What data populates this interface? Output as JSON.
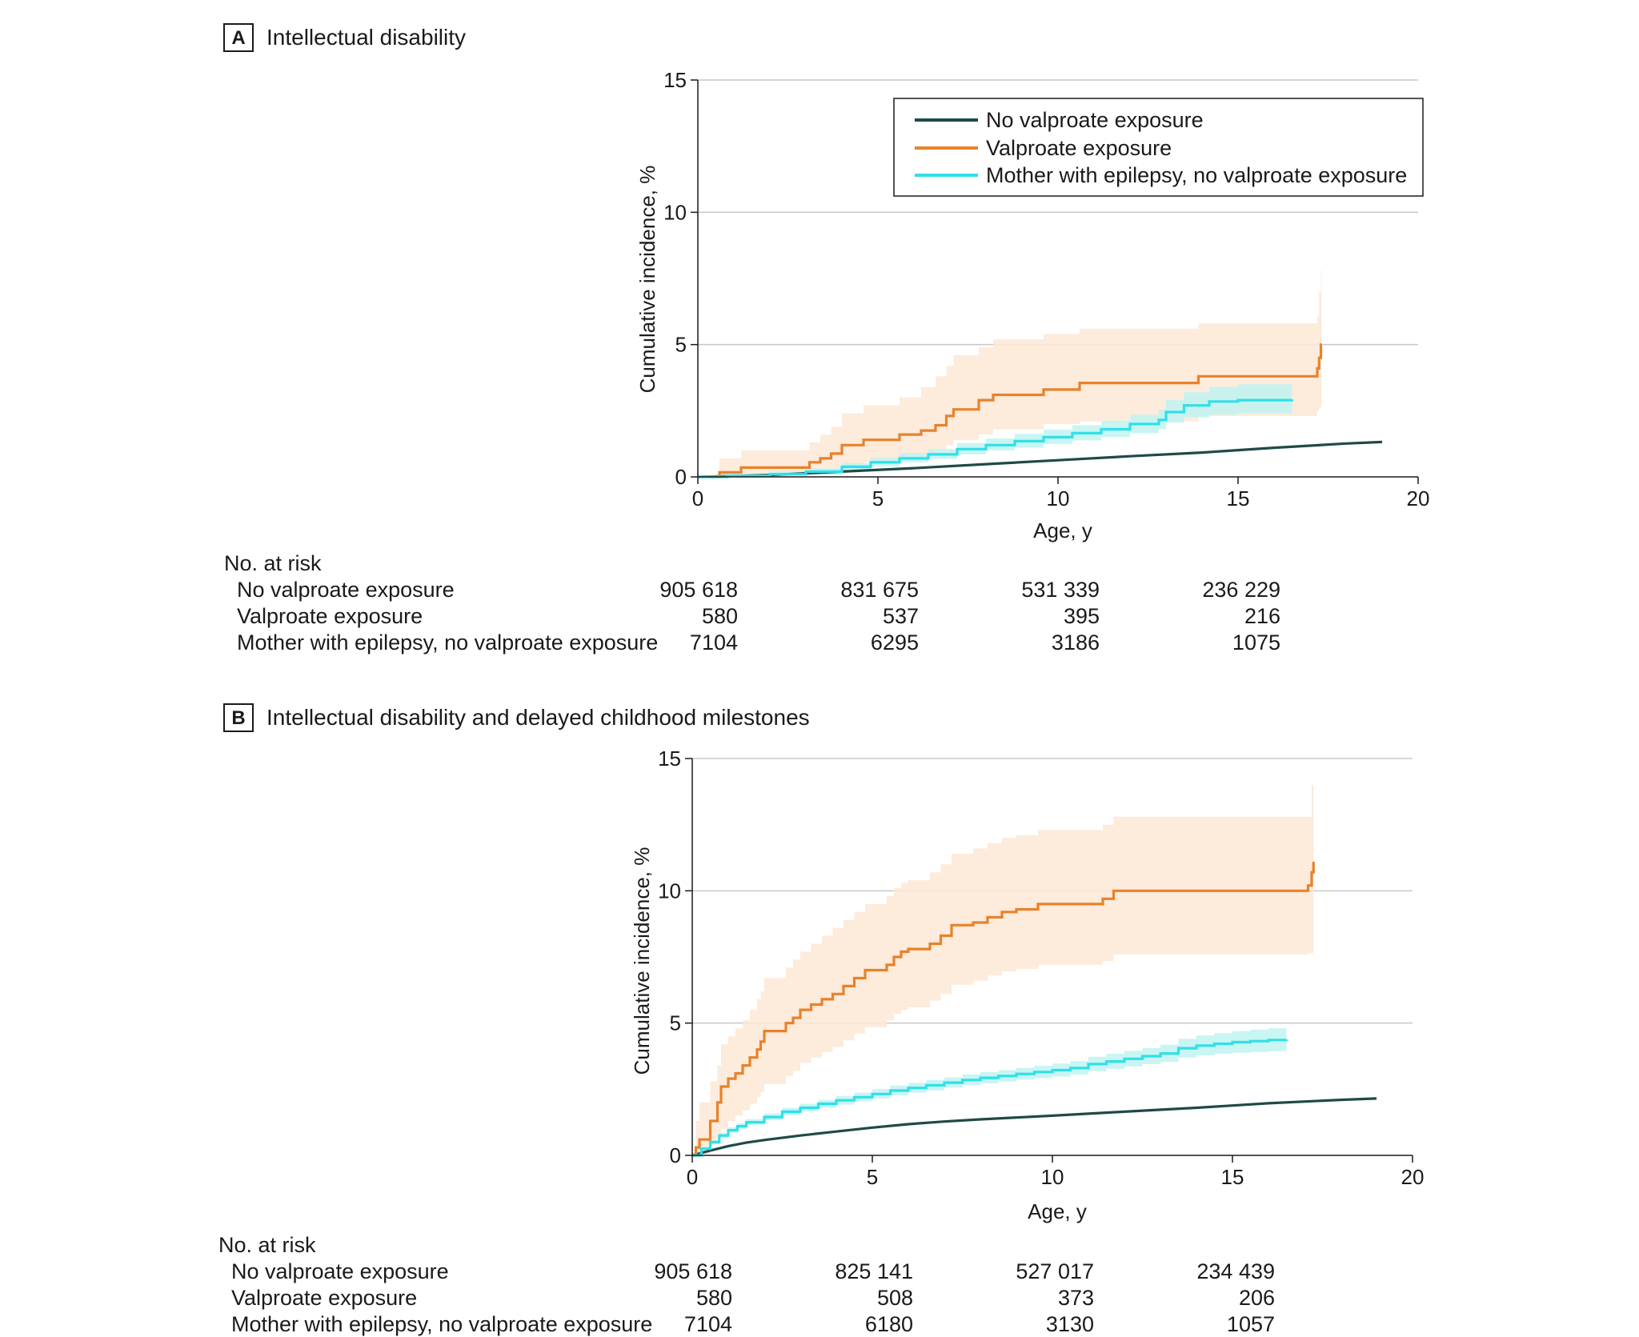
{
  "colors": {
    "no_valproate": "#1f4a45",
    "valproate": "#e8822a",
    "epilepsy": "#2fe0e8",
    "valproate_band": "#fde8d6",
    "epilepsy_band": "#bff3f1",
    "grid": "#c8c8c8",
    "axis": "#1a1a1a"
  },
  "legend": {
    "items": [
      {
        "key": "no_valproate",
        "label": "No valproate exposure"
      },
      {
        "key": "valproate",
        "label": "Valproate exposure"
      },
      {
        "key": "epilepsy",
        "label": "Mother with epilepsy, no valproate exposure"
      }
    ]
  },
  "chart_data": [
    {
      "panel": "A",
      "title": "Intellectual disability",
      "type": "line",
      "xlabel": "Age, y",
      "ylabel": "Cumulative incidence, %",
      "xlim": [
        0,
        20
      ],
      "ylim": [
        0,
        15
      ],
      "xticks": [
        0,
        5,
        10,
        15,
        20
      ],
      "yticks": [
        0,
        5,
        10,
        15
      ],
      "grid": "horizontal",
      "legend_position": "top-right",
      "series": [
        {
          "key": "no_valproate",
          "name": "No valproate exposure",
          "step": false,
          "x": [
            0,
            2,
            4,
            6,
            8,
            10,
            12,
            14,
            16,
            17,
            18,
            19
          ],
          "y": [
            0,
            0.07,
            0.2,
            0.33,
            0.48,
            0.63,
            0.78,
            0.92,
            1.1,
            1.18,
            1.26,
            1.32
          ]
        },
        {
          "key": "valproate",
          "name": "Valproate exposure",
          "step": true,
          "x": [
            0,
            0.6,
            1.2,
            3.1,
            3.4,
            3.7,
            4.0,
            4.6,
            5.6,
            6.2,
            6.6,
            6.9,
            7.1,
            7.8,
            8.2,
            9.6,
            10.6,
            13.9,
            17.2,
            17.25,
            17.3,
            17.32
          ],
          "y": [
            0,
            0.17,
            0.35,
            0.55,
            0.7,
            0.88,
            1.2,
            1.4,
            1.6,
            1.75,
            1.95,
            2.3,
            2.55,
            2.9,
            3.1,
            3.3,
            3.55,
            3.8,
            4.1,
            4.5,
            5.0,
            5.0
          ],
          "ci_lower": [
            0,
            0,
            0.05,
            0.1,
            0.15,
            0.25,
            0.4,
            0.55,
            0.7,
            0.85,
            1.0,
            1.2,
            1.4,
            1.6,
            1.8,
            2.0,
            2.1,
            2.3,
            2.5,
            2.6,
            2.7,
            2.7
          ],
          "ci_upper": [
            0,
            0.7,
            1.0,
            1.3,
            1.6,
            1.9,
            2.4,
            2.7,
            3.0,
            3.4,
            3.8,
            4.2,
            4.6,
            4.9,
            5.2,
            5.4,
            5.6,
            5.8,
            6.1,
            7.0,
            7.8,
            7.8
          ]
        },
        {
          "key": "epilepsy",
          "name": "Mother with epilepsy, no valproate exposure",
          "step": true,
          "x": [
            0,
            0.8,
            2.0,
            3.0,
            4.0,
            4.8,
            5.6,
            6.4,
            7.2,
            8.0,
            8.8,
            9.6,
            10.4,
            11.2,
            12.0,
            12.8,
            13.0,
            13.5,
            14.2,
            15.0,
            16.5
          ],
          "y": [
            0,
            0.04,
            0.1,
            0.2,
            0.38,
            0.55,
            0.7,
            0.85,
            1.05,
            1.2,
            1.35,
            1.5,
            1.65,
            1.8,
            2.0,
            2.15,
            2.45,
            2.7,
            2.85,
            2.9,
            2.92
          ],
          "ci_lower": [
            0,
            0,
            0.05,
            0.1,
            0.25,
            0.4,
            0.55,
            0.68,
            0.85,
            1.0,
            1.1,
            1.25,
            1.38,
            1.5,
            1.65,
            1.8,
            2.05,
            2.25,
            2.35,
            2.4,
            2.4
          ],
          "ci_upper": [
            0,
            0.1,
            0.2,
            0.32,
            0.52,
            0.72,
            0.9,
            1.05,
            1.28,
            1.45,
            1.62,
            1.78,
            1.95,
            2.12,
            2.35,
            2.55,
            2.9,
            3.2,
            3.4,
            3.5,
            3.5
          ]
        }
      ],
      "at_risk": {
        "header": "No. at risk",
        "x": [
          0,
          5,
          10,
          15
        ],
        "rows": [
          {
            "key": "no_valproate",
            "label": "No valproate exposure",
            "values": [
              "905 618",
              "831 675",
              "531 339",
              "236 229"
            ]
          },
          {
            "key": "valproate",
            "label": "Valproate exposure",
            "values": [
              "580",
              "537",
              "395",
              "216"
            ]
          },
          {
            "key": "epilepsy",
            "label": "Mother with epilepsy, no valproate exposure",
            "values": [
              "7104",
              "6295",
              "3186",
              "1075"
            ]
          }
        ]
      }
    },
    {
      "panel": "B",
      "title": "Intellectual disability and delayed childhood milestones",
      "type": "line",
      "xlabel": "Age, y",
      "ylabel": "Cumulative incidence, %",
      "xlim": [
        0,
        20
      ],
      "ylim": [
        0,
        15
      ],
      "xticks": [
        0,
        5,
        10,
        15,
        20
      ],
      "yticks": [
        0,
        5,
        10,
        15
      ],
      "grid": "horizontal",
      "series": [
        {
          "key": "no_valproate",
          "name": "No valproate exposure",
          "step": false,
          "x": [
            0,
            0.5,
            1,
            1.5,
            2,
            3,
            4,
            5,
            6,
            7,
            8,
            10,
            12,
            14,
            16,
            18,
            19
          ],
          "y": [
            0,
            0.18,
            0.35,
            0.48,
            0.58,
            0.75,
            0.9,
            1.05,
            1.18,
            1.28,
            1.36,
            1.5,
            1.65,
            1.8,
            1.97,
            2.1,
            2.15
          ]
        },
        {
          "key": "valproate",
          "name": "Valproate exposure",
          "step": true,
          "x": [
            0,
            0.1,
            0.2,
            0.5,
            0.7,
            0.8,
            1.0,
            1.2,
            1.4,
            1.6,
            1.8,
            1.9,
            2.0,
            2.6,
            2.8,
            3.0,
            3.3,
            3.6,
            3.9,
            4.2,
            4.5,
            4.8,
            5.4,
            5.6,
            5.8,
            6.0,
            6.6,
            6.9,
            7.2,
            7.8,
            8.2,
            8.6,
            9.0,
            9.6,
            11.4,
            11.7,
            17.1,
            17.2,
            17.25
          ],
          "y": [
            0,
            0.3,
            0.6,
            1.3,
            2.0,
            2.6,
            2.9,
            3.1,
            3.4,
            3.7,
            4.0,
            4.3,
            4.7,
            5.0,
            5.2,
            5.5,
            5.7,
            5.9,
            6.1,
            6.4,
            6.7,
            7.0,
            7.2,
            7.5,
            7.7,
            7.8,
            8.0,
            8.3,
            8.7,
            8.8,
            9.0,
            9.2,
            9.3,
            9.5,
            9.7,
            10.0,
            10.2,
            10.7,
            11.1
          ],
          "ci_lower": [
            0,
            0,
            0.05,
            0.4,
            0.7,
            1.0,
            1.3,
            1.5,
            1.7,
            1.95,
            2.2,
            2.4,
            2.7,
            3.0,
            3.2,
            3.5,
            3.7,
            3.9,
            4.1,
            4.35,
            4.6,
            4.85,
            5.1,
            5.35,
            5.5,
            5.6,
            5.85,
            6.1,
            6.45,
            6.6,
            6.8,
            6.95,
            7.05,
            7.2,
            7.35,
            7.6,
            7.65,
            7.65,
            7.65
          ],
          "ci_upper": [
            0,
            1.3,
            2.0,
            2.8,
            3.4,
            4.2,
            4.5,
            4.8,
            5.1,
            5.5,
            5.9,
            6.2,
            6.7,
            7.1,
            7.4,
            7.7,
            8.0,
            8.3,
            8.6,
            8.9,
            9.2,
            9.5,
            9.8,
            10.1,
            10.3,
            10.4,
            10.7,
            11.0,
            11.4,
            11.6,
            11.8,
            12.0,
            12.1,
            12.3,
            12.5,
            12.8,
            12.8,
            14.0,
            14.5
          ]
        },
        {
          "key": "epilepsy",
          "name": "Mother with epilepsy, no valproate exposure",
          "step": true,
          "x": [
            0,
            0.25,
            0.5,
            0.75,
            1.0,
            1.25,
            1.5,
            2.0,
            2.5,
            3.0,
            3.5,
            4.0,
            4.5,
            5.0,
            5.5,
            6.0,
            6.5,
            7.0,
            7.5,
            8.0,
            8.5,
            9.0,
            9.5,
            10.0,
            10.5,
            11.0,
            11.5,
            12.0,
            12.5,
            13.0,
            13.5,
            14.0,
            14.5,
            15.0,
            15.5,
            16.0,
            16.5
          ],
          "y": [
            0,
            0.25,
            0.5,
            0.75,
            0.95,
            1.1,
            1.25,
            1.45,
            1.65,
            1.8,
            1.95,
            2.08,
            2.2,
            2.32,
            2.45,
            2.55,
            2.65,
            2.75,
            2.85,
            2.93,
            3.0,
            3.08,
            3.15,
            3.22,
            3.3,
            3.45,
            3.55,
            3.65,
            3.75,
            3.85,
            4.05,
            4.15,
            4.22,
            4.28,
            4.32,
            4.36,
            4.38
          ],
          "ci_lower": [
            0,
            0.18,
            0.42,
            0.66,
            0.85,
            1.0,
            1.14,
            1.33,
            1.52,
            1.66,
            1.8,
            1.92,
            2.04,
            2.15,
            2.27,
            2.37,
            2.46,
            2.56,
            2.65,
            2.72,
            2.79,
            2.86,
            2.92,
            2.98,
            3.05,
            3.18,
            3.27,
            3.36,
            3.45,
            3.53,
            3.7,
            3.78,
            3.84,
            3.88,
            3.91,
            3.94,
            3.95
          ],
          "ci_upper": [
            0,
            0.33,
            0.58,
            0.85,
            1.06,
            1.21,
            1.37,
            1.58,
            1.79,
            1.95,
            2.1,
            2.25,
            2.37,
            2.5,
            2.64,
            2.74,
            2.85,
            2.95,
            3.06,
            3.15,
            3.22,
            3.31,
            3.39,
            3.47,
            3.56,
            3.73,
            3.84,
            3.95,
            4.06,
            4.18,
            4.41,
            4.53,
            4.62,
            4.7,
            4.75,
            4.8,
            4.83
          ]
        }
      ],
      "at_risk": {
        "header": "No. at risk",
        "x": [
          0,
          5,
          10,
          15
        ],
        "rows": [
          {
            "key": "no_valproate",
            "label": "No valproate exposure",
            "values": [
              "905 618",
              "825 141",
              "527 017",
              "234 439"
            ]
          },
          {
            "key": "valproate",
            "label": "Valproate exposure",
            "values": [
              "580",
              "508",
              "373",
              "206"
            ]
          },
          {
            "key": "epilepsy",
            "label": "Mother with epilepsy, no valproate exposure",
            "values": [
              "7104",
              "6180",
              "3130",
              "1057"
            ]
          }
        ]
      }
    }
  ]
}
